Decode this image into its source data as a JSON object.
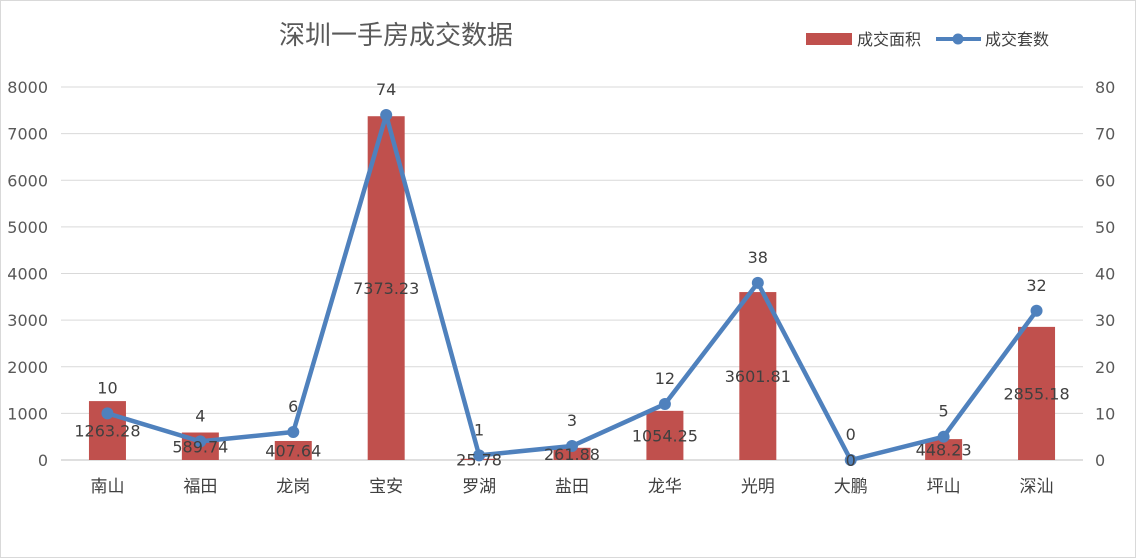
{
  "chart_data": {
    "type": "bar+line",
    "title": "深圳一手房成交数据",
    "categories": [
      "南山",
      "福田",
      "龙岗",
      "宝安",
      "罗湖",
      "盐田",
      "龙华",
      "光明",
      "大鹏",
      "坪山",
      "深汕"
    ],
    "series": [
      {
        "name": "成交面积",
        "type": "bar",
        "axis": "left",
        "color": "#c0504d",
        "values": [
          1263.28,
          589.74,
          407.64,
          7373.23,
          25.78,
          261.88,
          1054.25,
          3601.81,
          0,
          448.23,
          2855.18
        ],
        "labels": [
          "1263.28",
          "589.74",
          "407.64",
          "7373.23",
          "25.78",
          "261.88",
          "1054.25",
          "3601.81",
          "0",
          "448.23",
          "2855.18"
        ]
      },
      {
        "name": "成交套数",
        "type": "line",
        "axis": "right",
        "color": "#4f81bd",
        "values": [
          10,
          4,
          6,
          74,
          1,
          3,
          12,
          38,
          0,
          5,
          32
        ],
        "labels": [
          "10",
          "4",
          "6",
          "74",
          "1",
          "3",
          "12",
          "38",
          "0",
          "5",
          "32"
        ]
      }
    ],
    "y_left": {
      "min": 0,
      "max": 8000,
      "ticks": [
        "0",
        "1000",
        "2000",
        "3000",
        "4000",
        "5000",
        "6000",
        "7000",
        "8000"
      ]
    },
    "y_right": {
      "min": 0,
      "max": 80,
      "ticks": [
        "0",
        "10",
        "20",
        "30",
        "40",
        "50",
        "60",
        "70",
        "80"
      ]
    },
    "grid": true,
    "legend_position": "top-right"
  }
}
